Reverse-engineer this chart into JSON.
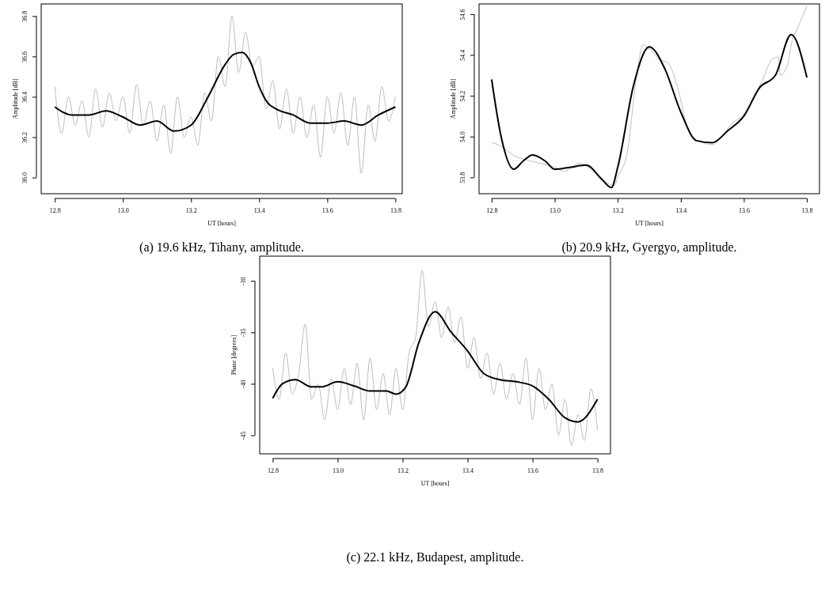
{
  "chart_data": [
    {
      "type": "line",
      "title": "(a) 19.6 kHz, Tihany, amplitude.",
      "xlabel": "UT [hours]",
      "ylabel": "Amplitude [dB]",
      "xlim": [
        12.76,
        13.82
      ],
      "ylim": [
        35.92,
        36.86
      ],
      "xticks": [
        {
          "value": 12.8,
          "label": "12.8"
        },
        {
          "value": 13,
          "label": "13.0"
        },
        {
          "value": 13.2,
          "label": "13.2"
        },
        {
          "value": 13.4,
          "label": "13.4"
        },
        {
          "value": 13.6,
          "label": "13.6"
        },
        {
          "value": 13.8,
          "label": "13.8"
        }
      ],
      "yticks": [
        {
          "value": 36,
          "label": "36.0"
        },
        {
          "value": 36.2,
          "label": "36.2"
        },
        {
          "value": 36.4,
          "label": "36.4"
        },
        {
          "value": 36.6,
          "label": "36.6"
        },
        {
          "value": 36.8,
          "label": "36.8"
        }
      ],
      "grid": false,
      "line_style": "solid",
      "marker": "none",
      "series": [
        {
          "color": "#bebebe",
          "x": [
            12.8,
            12.82,
            12.84,
            12.86,
            12.88,
            12.9,
            12.92,
            12.94,
            12.96,
            12.98,
            13,
            13.02,
            13.04,
            13.06,
            13.08,
            13.1,
            13.12,
            13.14,
            13.16,
            13.18,
            13.2,
            13.22,
            13.24,
            13.26,
            13.28,
            13.3,
            13.32,
            13.34,
            13.36,
            13.38,
            13.4,
            13.42,
            13.44,
            13.46,
            13.48,
            13.5,
            13.52,
            13.54,
            13.56,
            13.58,
            13.6,
            13.62,
            13.64,
            13.66,
            13.68,
            13.7,
            13.72,
            13.74,
            13.76,
            13.78,
            13.8
          ],
          "values": [
            36.45,
            36.22,
            36.4,
            36.26,
            36.38,
            36.2,
            36.44,
            36.25,
            36.42,
            36.28,
            36.4,
            36.22,
            36.46,
            36.26,
            36.38,
            36.18,
            36.36,
            36.12,
            36.4,
            36.2,
            36.3,
            36.16,
            36.42,
            36.28,
            36.6,
            36.45,
            36.8,
            36.52,
            36.72,
            36.55,
            36.6,
            36.34,
            36.48,
            36.24,
            36.44,
            36.22,
            36.4,
            36.2,
            36.36,
            36.1,
            36.4,
            36.22,
            36.42,
            36.16,
            36.4,
            36.02,
            36.36,
            36.18,
            36.45,
            36.28,
            36.4
          ]
        },
        {
          "color": "#000000",
          "x": [
            12.8,
            12.85,
            12.9,
            12.95,
            13,
            13.05,
            13.1,
            13.15,
            13.2,
            13.25,
            13.3,
            13.325,
            13.35,
            13.375,
            13.4,
            13.425,
            13.45,
            13.5,
            13.55,
            13.6,
            13.65,
            13.7,
            13.75,
            13.8
          ],
          "values": [
            36.35,
            36.31,
            36.31,
            36.33,
            36.3,
            36.26,
            36.28,
            36.23,
            36.26,
            36.4,
            36.56,
            36.61,
            36.62,
            36.57,
            36.45,
            36.37,
            36.34,
            36.31,
            36.27,
            36.27,
            36.28,
            36.26,
            36.31,
            36.35
          ]
        }
      ]
    },
    {
      "type": "line",
      "title": "(b) 20.9 kHz, Gyergyo, amplitude.",
      "xlabel": "UT [hours]",
      "ylabel": "Amplitude [dB]",
      "xlim": [
        12.76,
        13.84
      ],
      "ylim": [
        53.72,
        54.65
      ],
      "xticks": [
        {
          "value": 12.8,
          "label": "12.8"
        },
        {
          "value": 13,
          "label": "13.0"
        },
        {
          "value": 13.2,
          "label": "13.2"
        },
        {
          "value": 13.4,
          "label": "13.4"
        },
        {
          "value": 13.6,
          "label": "13.6"
        },
        {
          "value": 13.8,
          "label": "13.8"
        }
      ],
      "yticks": [
        {
          "value": 53.8,
          "label": "53.8"
        },
        {
          "value": 54,
          "label": "54.0"
        },
        {
          "value": 54.2,
          "label": "54.2"
        },
        {
          "value": 54.4,
          "label": "54.4"
        },
        {
          "value": 54.6,
          "label": "54.6"
        }
      ],
      "grid": false,
      "line_style": "solid",
      "marker": "none",
      "series": [
        {
          "color": "#bebebe",
          "x": [
            12.8,
            12.82,
            12.85,
            12.88,
            12.9,
            12.95,
            13,
            13.03,
            13.08,
            13.12,
            13.15,
            13.19,
            13.2,
            13.23,
            13.26,
            13.28,
            13.3,
            13.33,
            13.36,
            13.39,
            13.42,
            13.44,
            13.47,
            13.5,
            13.53,
            13.56,
            13.6,
            13.63,
            13.66,
            13.69,
            13.71,
            13.715,
            13.74,
            13.75,
            13.77,
            13.8
          ],
          "values": [
            53.97,
            53.96,
            53.93,
            53.9,
            53.89,
            53.87,
            53.85,
            53.83,
            53.87,
            53.83,
            53.79,
            53.76,
            53.8,
            53.92,
            54.3,
            54.45,
            54.43,
            54.38,
            54.36,
            54.24,
            54.05,
            53.99,
            53.97,
            53.96,
            54,
            54.06,
            54.11,
            54.19,
            54.28,
            54.38,
            54.39,
            54.3,
            54.36,
            54.45,
            54.53,
            54.64
          ]
        },
        {
          "color": "#000000",
          "x": [
            12.8,
            12.83,
            12.87,
            12.9,
            12.93,
            12.97,
            13,
            13.05,
            13.1,
            13.15,
            13.18,
            13.2,
            13.25,
            13.3,
            13.35,
            13.4,
            13.45,
            13.5,
            13.55,
            13.6,
            13.65,
            13.7,
            13.75,
            13.8
          ],
          "values": [
            54.28,
            54,
            53.84,
            53.88,
            53.91,
            53.88,
            53.84,
            53.85,
            53.86,
            53.79,
            53.75,
            53.85,
            54.25,
            54.44,
            54.33,
            54.12,
            53.98,
            53.97,
            54.03,
            54.1,
            54.24,
            54.3,
            54.5,
            54.29
          ]
        }
      ]
    },
    {
      "type": "line",
      "title": "(c) 22.1 kHz, Budapest, amplitude.",
      "xlabel": "UT [hours]",
      "ylabel": "Phase [degrees]",
      "xlim": [
        12.76,
        13.84
      ],
      "ylim": [
        -46.8,
        -27.6
      ],
      "xticks": [
        {
          "value": 12.8,
          "label": "12.8"
        },
        {
          "value": 13,
          "label": "13.0"
        },
        {
          "value": 13.2,
          "label": "13.2"
        },
        {
          "value": 13.4,
          "label": "13.4"
        },
        {
          "value": 13.6,
          "label": "13.6"
        },
        {
          "value": 13.8,
          "label": "13.8"
        }
      ],
      "yticks": [
        -45,
        -40,
        -35,
        -30
      ],
      "grid": false,
      "line_style": "solid",
      "marker": "none",
      "series": [
        {
          "color": "#bebebe",
          "x": [
            12.8,
            12.82,
            12.84,
            12.86,
            12.88,
            12.9,
            12.92,
            12.94,
            12.96,
            12.98,
            13,
            13.02,
            13.04,
            13.06,
            13.08,
            13.1,
            13.12,
            13.14,
            13.16,
            13.18,
            13.2,
            13.22,
            13.24,
            13.26,
            13.28,
            13.3,
            13.32,
            13.34,
            13.36,
            13.38,
            13.4,
            13.42,
            13.44,
            13.46,
            13.48,
            13.5,
            13.52,
            13.54,
            13.56,
            13.58,
            13.6,
            13.62,
            13.64,
            13.66,
            13.68,
            13.7,
            13.72,
            13.74,
            13.76,
            13.78,
            13.8
          ],
          "values": [
            -38.5,
            -41.5,
            -37,
            -41,
            -39,
            -34.2,
            -41.5,
            -40,
            -43.5,
            -39.5,
            -42.5,
            -38.5,
            -42,
            -38,
            -43.5,
            -37.5,
            -42.5,
            -39,
            -43,
            -38.5,
            -42.5,
            -37,
            -35.5,
            -29,
            -34.5,
            -32,
            -35.5,
            -32.5,
            -36,
            -33.5,
            -38.5,
            -35.5,
            -39.5,
            -37,
            -41,
            -38,
            -41.5,
            -39,
            -42,
            -37.5,
            -43.5,
            -38.5,
            -42.5,
            -40,
            -45,
            -41.5,
            -46,
            -43,
            -45.5,
            -40.5,
            -44.5
          ]
        },
        {
          "color": "#000000",
          "x": [
            12.8,
            12.83,
            12.87,
            12.92,
            12.95,
            13,
            13.05,
            13.1,
            13.15,
            13.18,
            13.21,
            13.25,
            13.3,
            13.35,
            13.4,
            13.45,
            13.5,
            13.55,
            13.6,
            13.65,
            13.7,
            13.74,
            13.8
          ],
          "values": [
            -41.4,
            -40,
            -39.6,
            -40.3,
            -40.3,
            -39.8,
            -40.2,
            -40.7,
            -40.7,
            -41,
            -40.3,
            -36,
            -33,
            -35,
            -36.8,
            -39,
            -39.6,
            -39.8,
            -40.2,
            -41.5,
            -43.3,
            -43.7,
            -41.5
          ]
        }
      ]
    }
  ]
}
